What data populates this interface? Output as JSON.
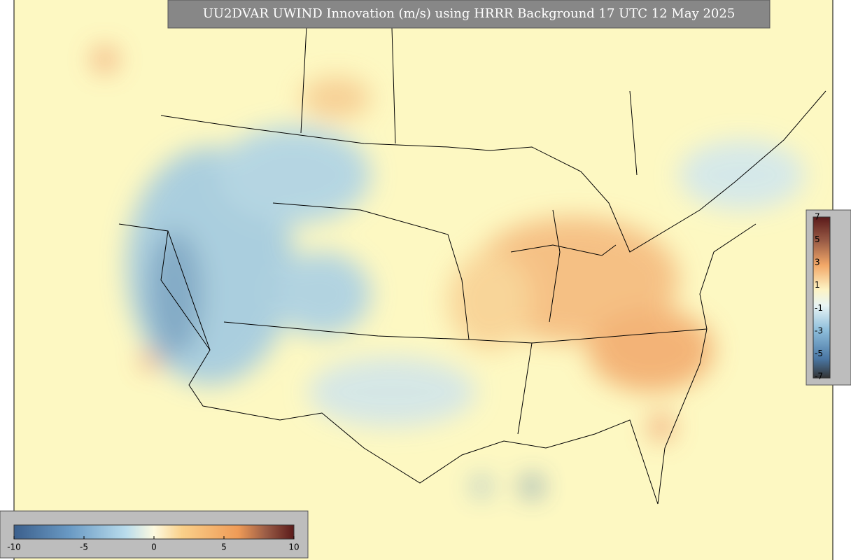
{
  "title": "UU2DVAR UWIND Innovation (m/s) using HRRR Background 17 UTC 12 May 2025",
  "colorbars": [
    {
      "ticks": [
        "-10",
        "-5",
        "0",
        "5",
        "10"
      ]
    },
    {
      "ticks": [
        "7",
        "5",
        "3",
        "1",
        "-1",
        "-3",
        "-5",
        "-7"
      ]
    }
  ]
}
